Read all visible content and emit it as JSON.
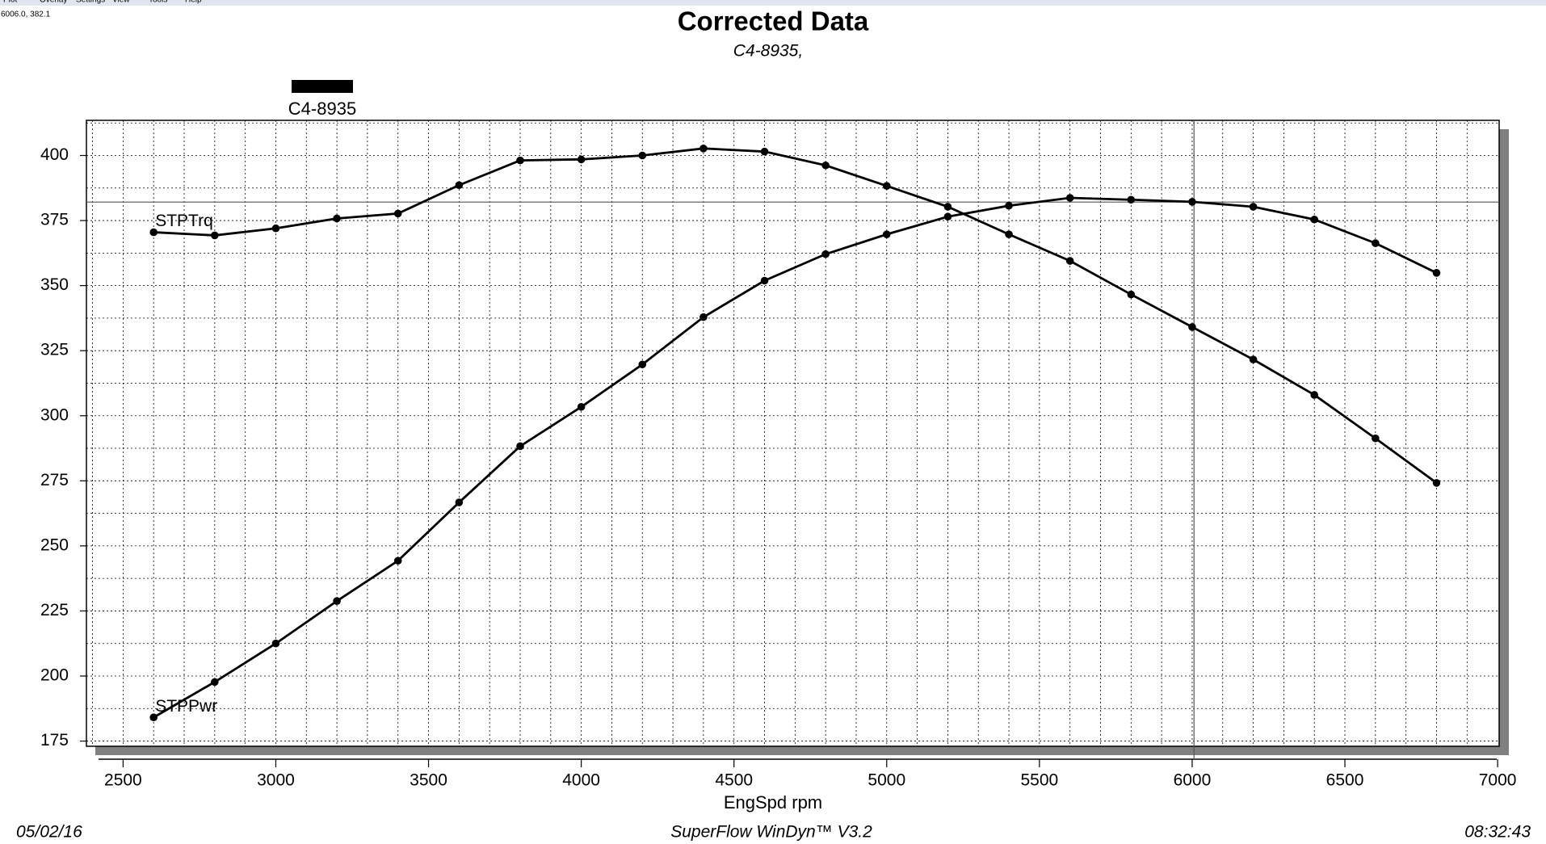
{
  "menu": [
    "Plot",
    "Overlay",
    "Settings",
    "View",
    "Tools",
    "Help"
  ],
  "cursor_label": "6006.0, 382.1",
  "footer": {
    "date": "05/02/16",
    "software": "SuperFlow WinDyn™ V3.2",
    "time": "08:32:43"
  },
  "chart_data": {
    "type": "line",
    "title": "Corrected Data",
    "subtitle": "C4-8935,",
    "legend": "C4-8935",
    "legend_color": "#000000",
    "xlabel": "EngSpd rpm",
    "x": [
      2600,
      2800,
      3000,
      3200,
      3400,
      3600,
      3800,
      4000,
      4200,
      4400,
      4600,
      4800,
      5000,
      5200,
      5400,
      5600,
      5800,
      6000,
      6200,
      6400,
      6600,
      6800
    ],
    "series": [
      {
        "name": "STPTrq",
        "color": "#000000",
        "values": [
          370.5,
          369.3,
          372,
          375.8,
          377.7,
          388.6,
          398.1,
          398.5,
          400,
          402.7,
          401.5,
          396.2,
          388.3,
          380.3,
          369.7,
          359.5,
          346.6,
          334.1,
          321.6,
          308,
          291.3,
          274.2
        ]
      },
      {
        "name": "STPPwr",
        "color": "#000000",
        "values": [
          184.1,
          197.7,
          212.5,
          228.8,
          244.3,
          266.7,
          288.3,
          303.4,
          319.7,
          337.9,
          351.9,
          362.1,
          369.7,
          376.5,
          380.7,
          383.7,
          383,
          382.2,
          380.3,
          375.4,
          366.3,
          354.9
        ]
      }
    ],
    "xlim": [
      2380,
      7005
    ],
    "ylim": [
      173,
      413.5
    ],
    "xticks": [
      2500,
      3000,
      3500,
      4000,
      4500,
      5000,
      5500,
      6000,
      6500,
      7000
    ],
    "yticks": [
      175,
      200,
      225,
      250,
      275,
      300,
      325,
      350,
      375,
      400
    ],
    "xgrid": [
      2400,
      2500,
      2600,
      2700,
      2800,
      2900,
      3000,
      3100,
      3200,
      3300,
      3400,
      3500,
      3600,
      3700,
      3800,
      3900,
      4000,
      4100,
      4200,
      4300,
      4400,
      4500,
      4600,
      4700,
      4800,
      4900,
      5000,
      5100,
      5200,
      5300,
      5400,
      5500,
      5600,
      5700,
      5800,
      5900,
      6000,
      6100,
      6200,
      6300,
      6400,
      6500,
      6600,
      6700,
      6800,
      6900
    ],
    "ygrid": [
      175,
      187.5,
      200,
      212.5,
      225,
      237.5,
      250,
      262.5,
      275,
      287.5,
      300,
      312.5,
      325,
      337.5,
      350,
      362.5,
      375,
      387.5,
      400,
      412.5
    ],
    "grid": true,
    "cursor": {
      "x": 6006,
      "y": 382.1
    }
  }
}
